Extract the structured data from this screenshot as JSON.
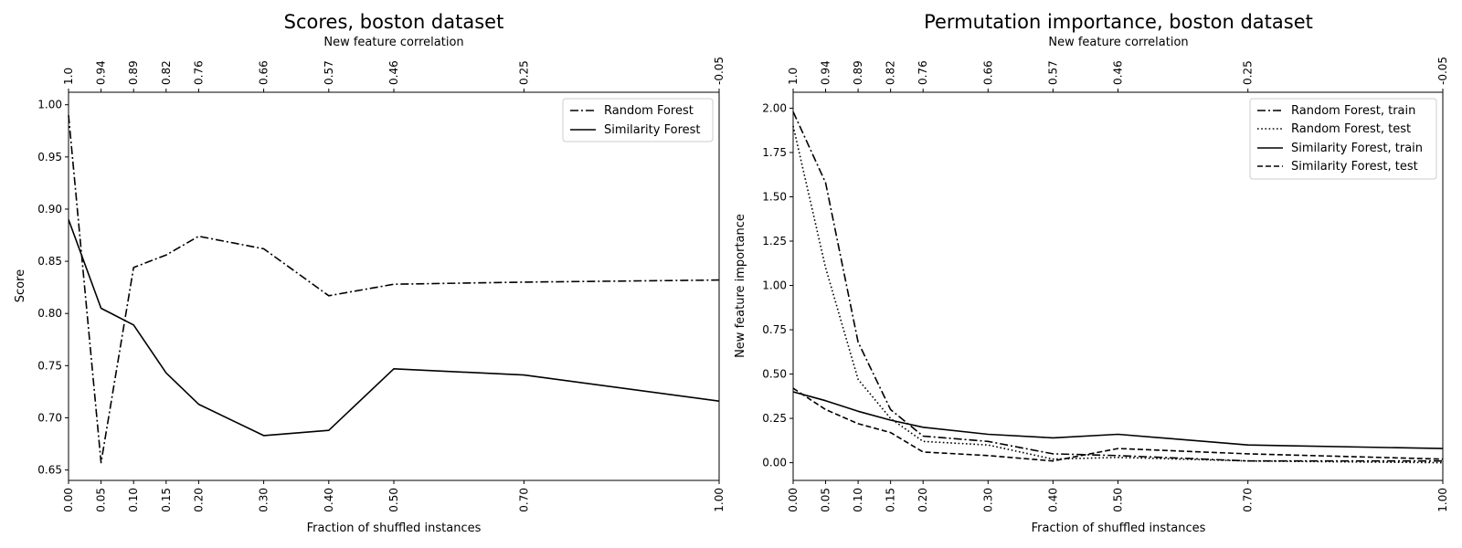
{
  "chart_data": [
    {
      "type": "line",
      "title": "Scores, boston dataset",
      "xlabel": "Fraction of shuffled instances",
      "ylabel": "Score",
      "top_xlabel": "New feature correlation",
      "x": [
        0.0,
        0.05,
        0.1,
        0.15,
        0.2,
        0.3,
        0.4,
        0.5,
        0.7,
        1.0
      ],
      "x_tick_labels": [
        "0.00",
        "0.05",
        "0.10",
        "0.15",
        "0.20",
        "0.30",
        "0.40",
        "0.50",
        "0.70",
        "1.00"
      ],
      "top_tick_labels": [
        "1.0",
        "0.94",
        "0.89",
        "0.82",
        "0.76",
        "0.66",
        "0.57",
        "0.46",
        "0.25",
        "-0.05"
      ],
      "xlim": [
        0.0,
        1.0
      ],
      "ylim": [
        0.64,
        1.012
      ],
      "y_ticks": [
        0.65,
        0.7,
        0.75,
        0.8,
        0.85,
        0.9,
        0.95,
        1.0
      ],
      "y_tick_labels": [
        "0.65",
        "0.70",
        "0.75",
        "0.80",
        "0.85",
        "0.90",
        "0.95",
        "1.00"
      ],
      "legend_position": "top-right",
      "series": [
        {
          "name": "Random Forest",
          "style": "dashdot",
          "values": [
            0.99,
            0.657,
            0.844,
            0.856,
            0.874,
            0.862,
            0.817,
            0.828,
            0.83,
            0.832
          ]
        },
        {
          "name": "Similarity Forest",
          "style": "solid",
          "values": [
            0.89,
            0.805,
            0.789,
            0.743,
            0.713,
            0.683,
            0.688,
            0.747,
            0.741,
            0.716
          ]
        }
      ]
    },
    {
      "type": "line",
      "title": "Permutation importance, boston dataset",
      "xlabel": "Fraction of shuffled instances",
      "ylabel": "New feature importance",
      "top_xlabel": "New feature correlation",
      "x": [
        0.0,
        0.05,
        0.1,
        0.15,
        0.2,
        0.3,
        0.4,
        0.5,
        0.7,
        1.0
      ],
      "x_tick_labels": [
        "0.00",
        "0.05",
        "0.10",
        "0.15",
        "0.20",
        "0.30",
        "0.40",
        "0.50",
        "0.70",
        "1.00"
      ],
      "top_tick_labels": [
        "1.0",
        "0.94",
        "0.89",
        "0.82",
        "0.76",
        "0.66",
        "0.57",
        "0.46",
        "0.25",
        "-0.05"
      ],
      "xlim": [
        0.0,
        1.0
      ],
      "ylim": [
        -0.1,
        2.09
      ],
      "y_ticks": [
        0.0,
        0.25,
        0.5,
        0.75,
        1.0,
        1.25,
        1.5,
        1.75,
        2.0
      ],
      "y_tick_labels": [
        "0.00",
        "0.25",
        "0.50",
        "0.75",
        "1.00",
        "1.25",
        "1.50",
        "1.75",
        "2.00"
      ],
      "legend_position": "top-right",
      "series": [
        {
          "name": "Random Forest, train",
          "style": "dashdot",
          "values": [
            1.98,
            1.58,
            0.68,
            0.3,
            0.15,
            0.12,
            0.05,
            0.04,
            0.01,
            0.01
          ]
        },
        {
          "name": "Random Forest, test",
          "style": "dotted",
          "values": [
            1.9,
            1.1,
            0.47,
            0.25,
            0.12,
            0.1,
            0.02,
            0.03,
            0.01,
            0.0
          ]
        },
        {
          "name": "Similarity Forest, train",
          "style": "solid",
          "values": [
            0.4,
            0.35,
            0.29,
            0.24,
            0.2,
            0.16,
            0.14,
            0.16,
            0.1,
            0.08
          ]
        },
        {
          "name": "Similarity Forest, test",
          "style": "dashed",
          "values": [
            0.42,
            0.3,
            0.22,
            0.17,
            0.06,
            0.04,
            0.01,
            0.08,
            0.05,
            0.02
          ]
        }
      ]
    }
  ]
}
